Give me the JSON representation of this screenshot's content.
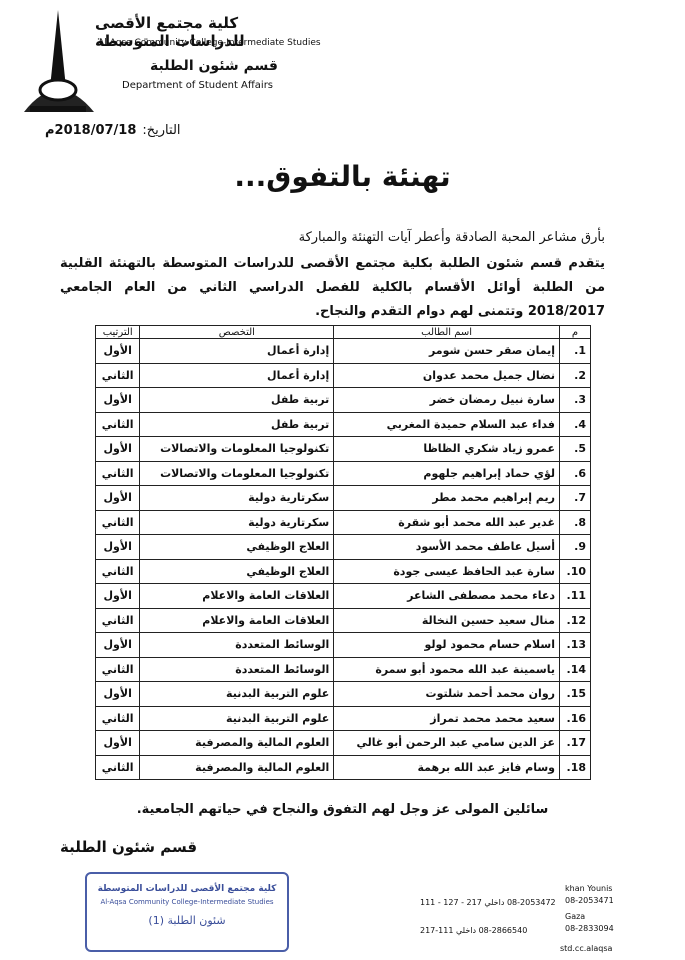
{
  "header": {
    "college_ar": "كلية مجتمع الأقصى للدراسات المتوسطة",
    "college_en": "Al-Aqsa Community College-Intermediate Studies",
    "department_ar": "قسم شئون الطلبة",
    "department_en": "Department of Student Affairs"
  },
  "date": {
    "label": "التاريخ:",
    "value": "2018/07/18م"
  },
  "title": "تهنئة بالتفوق...",
  "intro": "بأرق مشاعر المحبة الصادقة وأعطر آيات التهنئة والمباركة",
  "paragraph": "يتقدم قسم شئون الطلبة بكلية مجتمع الأقصى للدراسات المتوسطة بالتهنئة القلبية من الطلبة أوائل الأقسام بالكلية للفصل الدراسي الثاني من العام الجامعي 2018/2017 وتتمنى لهم دوام التقدم والنجاح.",
  "table": {
    "headers": [
      "م",
      "اسم الطالب",
      "التخصص",
      "الترتيب"
    ],
    "rows": [
      [
        "1.",
        "إيمان صقر حسن شومر",
        "إدارة أعمال",
        "الأول"
      ],
      [
        "2.",
        "نضال جميل محمد عدوان",
        "إدارة أعمال",
        "الثاني"
      ],
      [
        "3.",
        "سارة نبيل رمضان خضر",
        "تربية طفل",
        "الأول"
      ],
      [
        "4.",
        "فداء عبد السلام حميدة المغربي",
        "تربية طفل",
        "الثاني"
      ],
      [
        "5.",
        "عمرو زياد شكري الظاظا",
        "تكنولوجيا المعلومات والاتصالات",
        "الأول"
      ],
      [
        "6.",
        "لؤي حماد إبراهيم جلهوم",
        "تكنولوجيا المعلومات والاتصالات",
        "الثاني"
      ],
      [
        "7.",
        "ريم إبراهيم محمد مطر",
        "سكرتارية دولية",
        "الأول"
      ],
      [
        "8.",
        "غدير عبد الله محمد أبو شقرة",
        "سكرتارية دولية",
        "الثاني"
      ],
      [
        "9.",
        "أسيل عاطف محمد الأسود",
        "العلاج الوظيفي",
        "الأول"
      ],
      [
        "10.",
        "سارة عبد الحافظ عيسى جودة",
        "العلاج الوظيفي",
        "الثاني"
      ],
      [
        "11.",
        "دعاء محمد مصطفى الشاعر",
        "العلاقات العامة والاعلام",
        "الأول"
      ],
      [
        "12.",
        "منال سعيد حسين النخالة",
        "العلاقات العامة والاعلام",
        "الثاني"
      ],
      [
        "13.",
        "اسلام حسام محمود لولو",
        "الوسائط المتعددة",
        "الأول"
      ],
      [
        "14.",
        "ياسمينة عبد الله محمود أبو سمرة",
        "الوسائط المتعددة",
        "الثاني"
      ],
      [
        "15.",
        "روان محمد أحمد شلتوت",
        "علوم التربية البدنية",
        "الأول"
      ],
      [
        "16.",
        "سعيد محمد محمد تمراز",
        "علوم التربية البدنية",
        "الثاني"
      ],
      [
        "17.",
        "عز الدين سامي عبد الرحمن أبو غالي",
        "العلوم المالية والمصرفية",
        "الأول"
      ],
      [
        "18.",
        "وسام فايز عبد الله برهمة",
        "العلوم المالية والمصرفية",
        "الثاني"
      ]
    ]
  },
  "closing": "سائلين المولى عز وجل لهم التفوق والنجاح في حياتهم الجامعية.",
  "signature": "قسم شئون الطلبة",
  "stamp": {
    "college_ar": "كلية مجتمع الأقصى للدراسات المتوسطة",
    "college_en": "Al-Aqsa Community College-Intermediate Studies",
    "unit": "شئون الطلبة (1)"
  },
  "footer": {
    "khan_younis": {
      "label": "khan Younis",
      "phone1": "08-2053471",
      "phone2": "08-2053472 داخلي 217 - 127 - 111"
    },
    "gaza": {
      "label": "Gaza",
      "phone1": "08-2833094",
      "phone2": "08-2866540 داخلي 111-217"
    },
    "email": "std.cc.alaqsa"
  }
}
